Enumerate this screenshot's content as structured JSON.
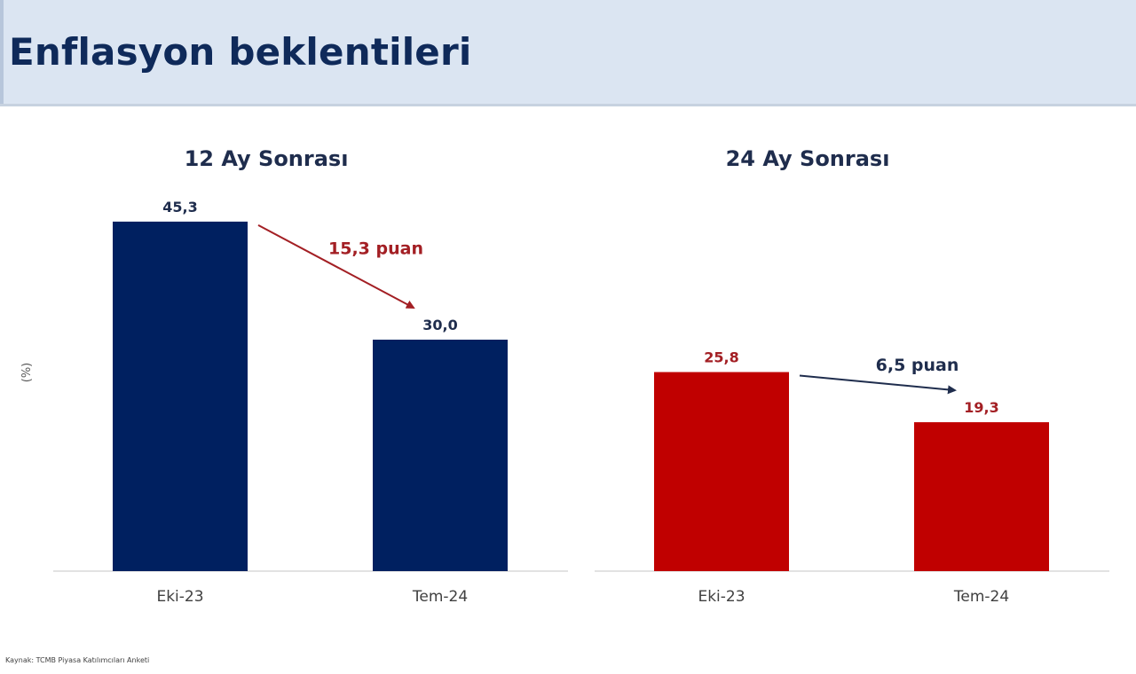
{
  "title": "Enflasyon beklentileri",
  "y_unit": "(%)",
  "source": "Kaynak: TCMB Piyasa Katılımcıları Anketi",
  "colors": {
    "navy": "#002060",
    "red": "#c00000",
    "header_bg": "#dbe5f2"
  },
  "chart_data": [
    {
      "type": "bar",
      "title": "12 Ay Sonrası",
      "categories": [
        "Eki-23",
        "Tem-24"
      ],
      "values": [
        45.3,
        30.0
      ],
      "value_labels": [
        "45,3",
        "30,0"
      ],
      "ylim": [
        0,
        50
      ],
      "bar_color": "#002060",
      "value_label_color": "#1f2d4d",
      "annotation": {
        "text": "15,3 puan",
        "color": "#a31f24",
        "arrow_color": "#a31f24"
      }
    },
    {
      "type": "bar",
      "title": "24 Ay Sonrası",
      "categories": [
        "Eki-23",
        "Tem-24"
      ],
      "values": [
        25.8,
        19.3
      ],
      "value_labels": [
        "25,8",
        "19,3"
      ],
      "ylim": [
        0,
        50
      ],
      "bar_color": "#c00000",
      "value_label_color": "#a31f24",
      "annotation": {
        "text": "6,5 puan",
        "color": "#1f2d4d",
        "arrow_color": "#1f2d4d"
      }
    }
  ]
}
